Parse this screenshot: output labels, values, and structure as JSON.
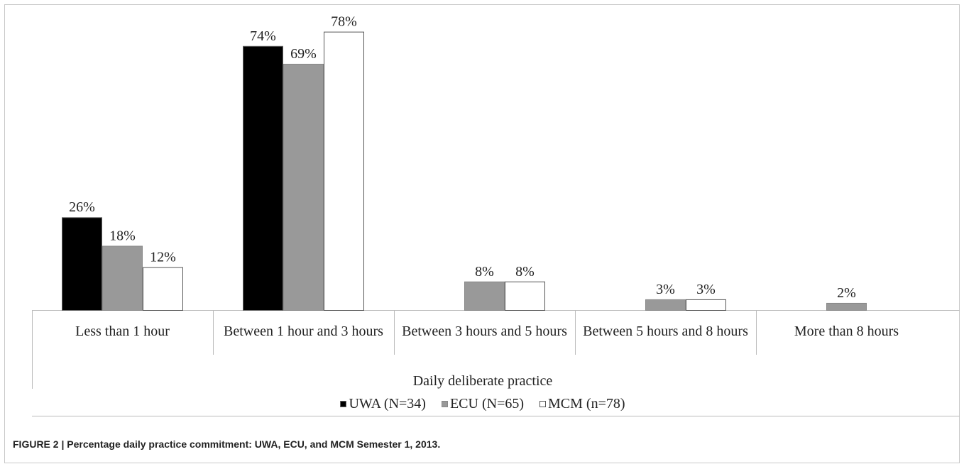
{
  "caption": "FIGURE 2 | Percentage daily practice commitment: UWA, ECU, and MCM Semester 1, 2013.",
  "chart_data": {
    "type": "bar",
    "x_label": "Daily deliberate practice",
    "categories": [
      "Less than 1 hour",
      "Between 1 hour and 3 hours",
      "Between 3 hours and 5 hours",
      "Between 5 hours and 8 hours",
      "More than 8 hours"
    ],
    "series": [
      {
        "name": "UWA (N=34)",
        "color": "#000000",
        "values": [
          26,
          74,
          null,
          null,
          null
        ],
        "value_labels": [
          "26%",
          "74%",
          null,
          null,
          null
        ]
      },
      {
        "name": "ECU (N=65)",
        "color": "#999999",
        "values": [
          18,
          69,
          8,
          3,
          2
        ],
        "value_labels": [
          "18%",
          "69%",
          "8%",
          "3%",
          "2%"
        ]
      },
      {
        "name": "MCM (n=78)",
        "color": "#ffffff",
        "values": [
          12,
          78,
          8,
          3,
          null
        ],
        "value_labels": [
          "12%",
          "78%",
          "8%",
          "3%",
          null
        ]
      }
    ],
    "legend": "bottom"
  }
}
